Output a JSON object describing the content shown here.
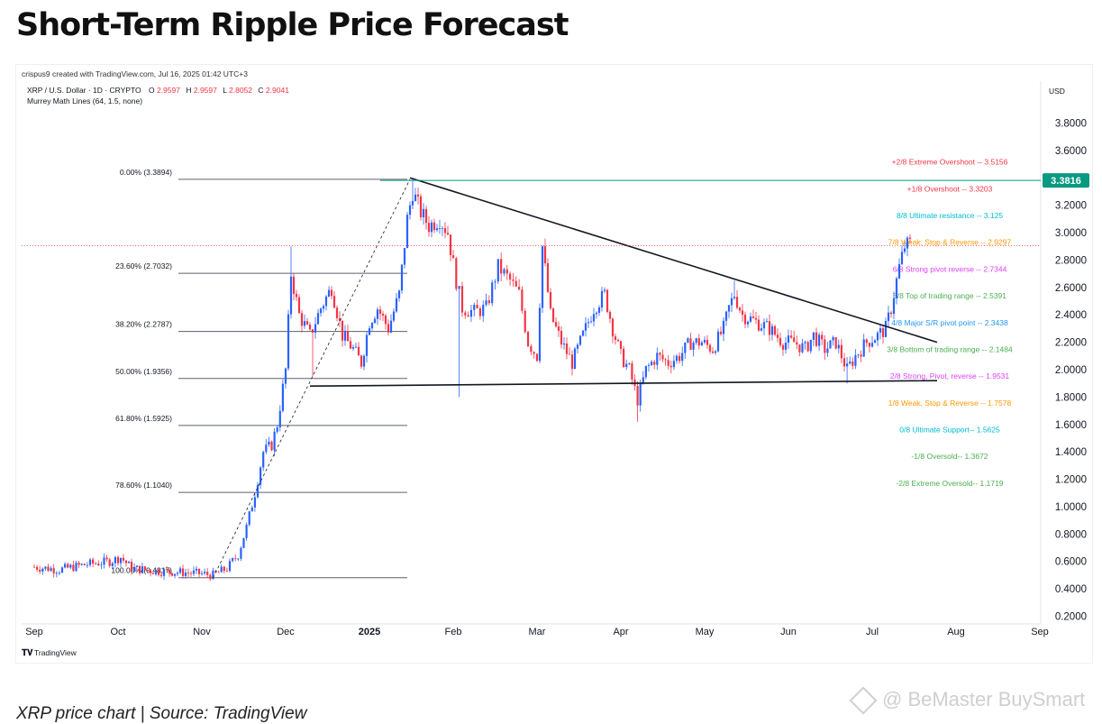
{
  "page": {
    "title": "Short-Term Ripple Price Forecast",
    "caption": "XRP price chart | Source: TradingView",
    "watermark": "@ BeMaster BuySmart"
  },
  "chart_data": {
    "type": "candlestick",
    "credit": "crispus9 created with TradingView.com, Jul 16, 2025 01:42 UTC+3",
    "symbol_line": {
      "symbol": "XRP / U.S. Dollar · 1D · CRYPTO",
      "open_label": "O",
      "open": "2.9597",
      "high_label": "H",
      "high": "2.9597",
      "low_label": "L",
      "low": "2.8052",
      "close_label": "C",
      "close": "2.9041"
    },
    "indicator": "Murrey Math Lines (64, 1.5, none)",
    "currency": "USD",
    "y_axis": {
      "ylim": [
        0.1,
        4.0
      ],
      "ticks": [
        "3.8000",
        "3.6000",
        "3.4000",
        "3.2000",
        "3.0000",
        "2.8000",
        "2.6000",
        "2.4000",
        "2.2000",
        "2.0000",
        "1.8000",
        "1.6000",
        "1.4000",
        "1.2000",
        "1.0000",
        "0.8000",
        "0.6000",
        "0.4000",
        "0.2000"
      ]
    },
    "x_axis": {
      "ticks": [
        "Sep",
        "Oct",
        "Nov",
        "Dec",
        "2025",
        "Feb",
        "Mar",
        "Apr",
        "May",
        "Jun",
        "Jul",
        "Aug",
        "Sep"
      ]
    },
    "last_price": {
      "value": 3.3816,
      "label": "3.3816",
      "color": "#089981"
    },
    "current_price_line": 2.9041,
    "fib_levels": [
      {
        "label": "0.00% (3.3894)",
        "value": 3.3894
      },
      {
        "label": "23.60% (2.7032)",
        "value": 2.7032
      },
      {
        "label": "38.20% (2.2787)",
        "value": 2.2787
      },
      {
        "label": "50.00% (1.9356)",
        "value": 1.9356
      },
      {
        "label": "61.80% (1.5925)",
        "value": 1.5925
      },
      {
        "label": "78.60% (1.1040)",
        "value": 1.104
      },
      {
        "label": "100.00% (0.4817)",
        "value": 0.4817
      }
    ],
    "murrey_lines": [
      {
        "label": "+2/8 Extreme Overshoot --  3.5156",
        "value": 3.5156,
        "color": "#f23645"
      },
      {
        "label": "+1/8 Overshoot --  3.3203",
        "value": 3.3203,
        "color": "#f23645"
      },
      {
        "label": "8/8 Ultimate resistance --  3.125",
        "value": 3.125,
        "color": "#00bcd4"
      },
      {
        "label": "7/8 Weak, Stop & Reverse --  2.9297",
        "value": 2.9297,
        "color": "#ff9800"
      },
      {
        "label": "6/8 Strong pivot reverse --  2.7344",
        "value": 2.7344,
        "color": "#e040fb"
      },
      {
        "label": "5/8 Top of trading range --  2.5391",
        "value": 2.5391,
        "color": "#4caf50"
      },
      {
        "label": "4/8 Major S/R pivot point --  2.3438",
        "value": 2.3438,
        "color": "#2196f3"
      },
      {
        "label": "3/8 Bottom of trading range --  2.1484",
        "value": 2.1484,
        "color": "#4caf50"
      },
      {
        "label": "2/8 Strong, Pivot, reverse --  1.9531",
        "value": 1.9531,
        "color": "#e040fb"
      },
      {
        "label": "1/8 Weak, Stop & Reverse --  1.7578",
        "value": 1.7578,
        "color": "#ff9800"
      },
      {
        "label": "0/8 Ultimate Support--  1.5625",
        "value": 1.5625,
        "color": "#00bcd4"
      },
      {
        "label": "-1/8 Oversold--  1.3672",
        "value": 1.3672,
        "color": "#4caf50"
      },
      {
        "label": "-2/8 Extreme Oversold--  1.1719",
        "value": 1.1719,
        "color": "#4caf50"
      }
    ],
    "price_path": [
      [
        "2024-09-01",
        0.56
      ],
      [
        "2024-09-10",
        0.54
      ],
      [
        "2024-09-20",
        0.58
      ],
      [
        "2024-09-28",
        0.6
      ],
      [
        "2024-10-02",
        0.63
      ],
      [
        "2024-10-06",
        0.55
      ],
      [
        "2024-10-15",
        0.53
      ],
      [
        "2024-10-25",
        0.52
      ],
      [
        "2024-11-01",
        0.51
      ],
      [
        "2024-11-05",
        0.5
      ],
      [
        "2024-11-10",
        0.55
      ],
      [
        "2024-11-14",
        0.65
      ],
      [
        "2024-11-17",
        0.85
      ],
      [
        "2024-11-20",
        1.1
      ],
      [
        "2024-11-23",
        1.4
      ],
      [
        "2024-11-26",
        1.45
      ],
      [
        "2024-11-28",
        1.6
      ],
      [
        "2024-12-01",
        2.0
      ],
      [
        "2024-12-03",
        2.7
      ],
      [
        "2024-12-06",
        2.4
      ],
      [
        "2024-12-10",
        2.25
      ],
      [
        "2024-12-14",
        2.45
      ],
      [
        "2024-12-18",
        2.6
      ],
      [
        "2024-12-22",
        2.25
      ],
      [
        "2024-12-26",
        2.15
      ],
      [
        "2024-12-29",
        2.05
      ],
      [
        "2025-01-01",
        2.35
      ],
      [
        "2025-01-04",
        2.45
      ],
      [
        "2025-01-08",
        2.3
      ],
      [
        "2025-01-12",
        2.55
      ],
      [
        "2025-01-15",
        3.1
      ],
      [
        "2025-01-17",
        3.3
      ],
      [
        "2025-01-20",
        3.15
      ],
      [
        "2025-01-23",
        3.05
      ],
      [
        "2025-01-27",
        3.1
      ],
      [
        "2025-01-30",
        3.0
      ],
      [
        "2025-02-02",
        2.65
      ],
      [
        "2025-02-04",
        2.45
      ],
      [
        "2025-02-08",
        2.42
      ],
      [
        "2025-02-12",
        2.45
      ],
      [
        "2025-02-16",
        2.75
      ],
      [
        "2025-02-20",
        2.65
      ],
      [
        "2025-02-23",
        2.55
      ],
      [
        "2025-02-26",
        2.2
      ],
      [
        "2025-03-01",
        2.1
      ],
      [
        "2025-03-03",
        2.9
      ],
      [
        "2025-03-06",
        2.4
      ],
      [
        "2025-03-10",
        2.2
      ],
      [
        "2025-03-14",
        2.05
      ],
      [
        "2025-03-18",
        2.25
      ],
      [
        "2025-03-22",
        2.45
      ],
      [
        "2025-03-26",
        2.55
      ],
      [
        "2025-03-29",
        2.3
      ],
      [
        "2025-04-01",
        2.1
      ],
      [
        "2025-04-04",
        2.0
      ],
      [
        "2025-04-07",
        1.78
      ],
      [
        "2025-04-10",
        2.0
      ],
      [
        "2025-04-14",
        2.1
      ],
      [
        "2025-04-18",
        2.05
      ],
      [
        "2025-04-22",
        2.1
      ],
      [
        "2025-04-26",
        2.2
      ],
      [
        "2025-04-30",
        2.2
      ],
      [
        "2025-05-04",
        2.15
      ],
      [
        "2025-05-08",
        2.3
      ],
      [
        "2025-05-10",
        2.45
      ],
      [
        "2025-05-12",
        2.55
      ],
      [
        "2025-05-15",
        2.4
      ],
      [
        "2025-05-20",
        2.35
      ],
      [
        "2025-05-25",
        2.3
      ],
      [
        "2025-05-30",
        2.2
      ],
      [
        "2025-06-03",
        2.2
      ],
      [
        "2025-06-07",
        2.15
      ],
      [
        "2025-06-10",
        2.25
      ],
      [
        "2025-06-14",
        2.15
      ],
      [
        "2025-06-18",
        2.2
      ],
      [
        "2025-06-22",
        2.0
      ],
      [
        "2025-06-25",
        2.1
      ],
      [
        "2025-06-29",
        2.2
      ],
      [
        "2025-07-03",
        2.25
      ],
      [
        "2025-07-06",
        2.3
      ],
      [
        "2025-07-08",
        2.45
      ],
      [
        "2025-07-10",
        2.65
      ],
      [
        "2025-07-11",
        2.75
      ],
      [
        "2025-07-13",
        2.9
      ],
      [
        "2025-07-15",
        2.92
      ]
    ],
    "spikes": [
      [
        "2024-12-03",
        2.9,
        "up"
      ],
      [
        "2024-12-11",
        1.95,
        "down"
      ],
      [
        "2025-01-17",
        3.4,
        "up"
      ],
      [
        "2025-02-03",
        1.8,
        "down"
      ],
      [
        "2025-04-07",
        1.62,
        "down"
      ],
      [
        "2025-05-12",
        2.65,
        "up"
      ],
      [
        "2025-06-22",
        1.9,
        "down"
      ]
    ],
    "trendlines": {
      "descending_resistance": [
        [
          "2025-01-16",
          3.4
        ],
        [
          "2025-07-25",
          2.2
        ]
      ],
      "horizontal_support": [
        [
          "2024-12-10",
          1.88
        ],
        [
          "2025-07-25",
          1.92
        ]
      ],
      "dashed_fib_anchor": [
        [
          "2024-11-05",
          0.48
        ],
        [
          "2025-01-16",
          3.39
        ]
      ]
    },
    "branding": "TradingView"
  }
}
